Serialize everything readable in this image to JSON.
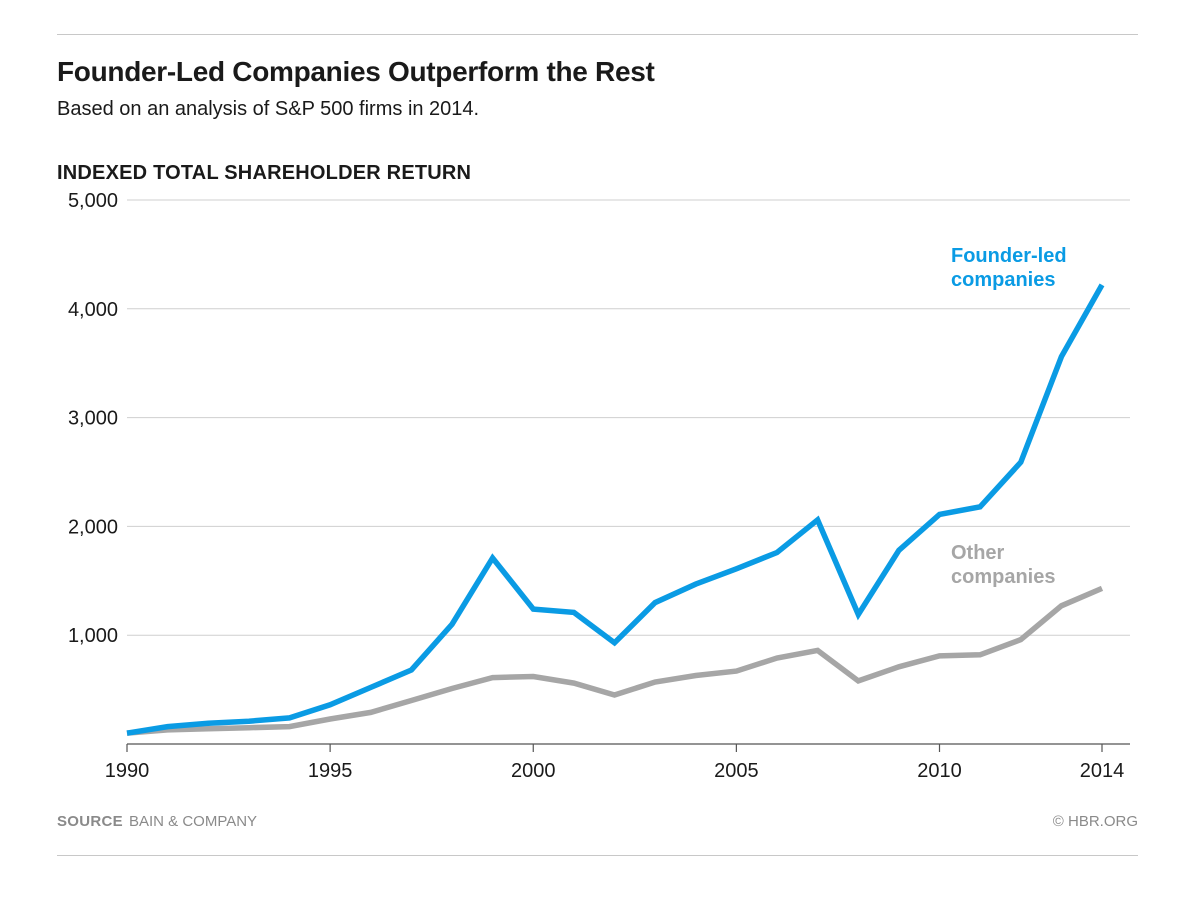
{
  "title": "Founder-Led Companies Outperform the Rest",
  "subtitle": "Based on an analysis of S&P 500 firms in 2014.",
  "footer": {
    "source_key": "SOURCE",
    "source_value": "BAIN & COMPANY",
    "credit": "© HBR.ORG"
  },
  "chart_data": {
    "type": "line",
    "ylabel": "INDEXED TOTAL SHAREHOLDER RETURN",
    "xlabel": "",
    "x": [
      1990,
      1991,
      1992,
      1993,
      1994,
      1995,
      1996,
      1997,
      1998,
      1999,
      2000,
      2001,
      2002,
      2003,
      2004,
      2005,
      2006,
      2007,
      2008,
      2009,
      2010,
      2011,
      2012,
      2013,
      2014
    ],
    "xlim": [
      1990,
      2014
    ],
    "ylim": [
      0,
      5000
    ],
    "x_ticks": [
      "1990",
      "1995",
      "2000",
      "2005",
      "2010",
      "2014"
    ],
    "y_ticks": [
      "1,000",
      "2,000",
      "3,000",
      "4,000",
      "5,000"
    ],
    "y_tick_values": [
      1000,
      2000,
      3000,
      4000,
      5000
    ],
    "x_tick_values": [
      1990,
      1995,
      2000,
      2005,
      2010,
      2014
    ],
    "grid": "horizontal",
    "series": [
      {
        "name": "Founder-led companies",
        "label_lines": [
          "Founder-led",
          "companies"
        ],
        "color": "#0a9be4",
        "values": [
          100,
          160,
          190,
          210,
          240,
          360,
          520,
          680,
          1100,
          1710,
          1240,
          1210,
          930,
          1300,
          1470,
          1610,
          1760,
          2060,
          1190,
          1780,
          2110,
          2180,
          2590,
          3560,
          4220
        ]
      },
      {
        "name": "Other companies",
        "label_lines": [
          "Other",
          "companies"
        ],
        "color": "#a6a6a6",
        "values": [
          100,
          130,
          140,
          150,
          160,
          230,
          290,
          400,
          510,
          610,
          620,
          560,
          450,
          570,
          630,
          670,
          790,
          860,
          580,
          710,
          810,
          820,
          960,
          1270,
          1430
        ]
      }
    ]
  }
}
